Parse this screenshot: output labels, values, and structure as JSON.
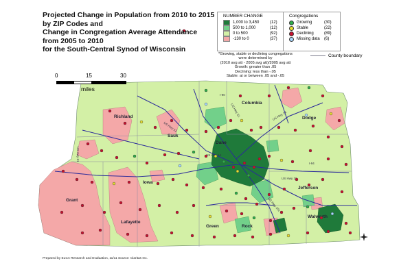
{
  "title_lines": [
    "Projected Change in Population from 2010 to 2015",
    "by ZIP Codes and",
    "Change in Congregation Average Attendance",
    "from 2005 to 2010",
    "for the South-Central Synod of Wisconsin"
  ],
  "legend_change": {
    "heading": "NUMBER CHANGE",
    "items": [
      {
        "label": "1,000 to 3,450",
        "count": "(12)",
        "color": "#1f7a3a"
      },
      {
        "label": "500 to 1,000",
        "count": "(12)",
        "color": "#72d08a"
      },
      {
        "label": "0 to 500",
        "count": "(92)",
        "color": "#d3f0a6"
      },
      {
        "label": "-130 to 0",
        "count": "(37)",
        "color": "#f4a8a8"
      }
    ]
  },
  "legend_congregations": {
    "heading": "Congregations",
    "items": [
      {
        "label": "Growing",
        "count": "(30)",
        "color": "#2fae4a"
      },
      {
        "label": "Stable",
        "count": "(22)",
        "color": "#e8e030"
      },
      {
        "label": "Declining",
        "count": "(89)",
        "color": "#c8102e"
      },
      {
        "label": "Missing data",
        "count": "(6)",
        "color": "#a8d8ff"
      }
    ]
  },
  "note_lines": [
    "*Growing, stable or declining congregations",
    "were determined by",
    "(2010 avg att - 2005 avg att)/2005 avg att",
    "Growth: greater than .05",
    "Declining: less than -.05",
    "Stable: at or between .05 and -.05"
  ],
  "county_boundary_label": "County boundary",
  "scale": {
    "ticks": [
      "0",
      "15",
      "30"
    ],
    "unit": "miles"
  },
  "counties": [
    {
      "name": "Columbia"
    },
    {
      "name": "Richland"
    },
    {
      "name": "Sauk"
    },
    {
      "name": "Dane"
    },
    {
      "name": "Dodge"
    },
    {
      "name": "Iowa"
    },
    {
      "name": "Jefferson"
    },
    {
      "name": "Grant"
    },
    {
      "name": "Lafayette"
    },
    {
      "name": "Green"
    },
    {
      "name": "Rock"
    },
    {
      "name": "Walworth"
    }
  ],
  "highways": [
    "US Hwy 51",
    "US Hwy 12",
    "US Hwy 18",
    "US Hwy 14",
    "I-90",
    "I-94",
    "US Hwy 151",
    "US Hwy 61",
    "US Hwy 14"
  ],
  "credit": "Prepared by ELCA Research and Evaluation, 11/11  Source: Claritas Inc."
}
